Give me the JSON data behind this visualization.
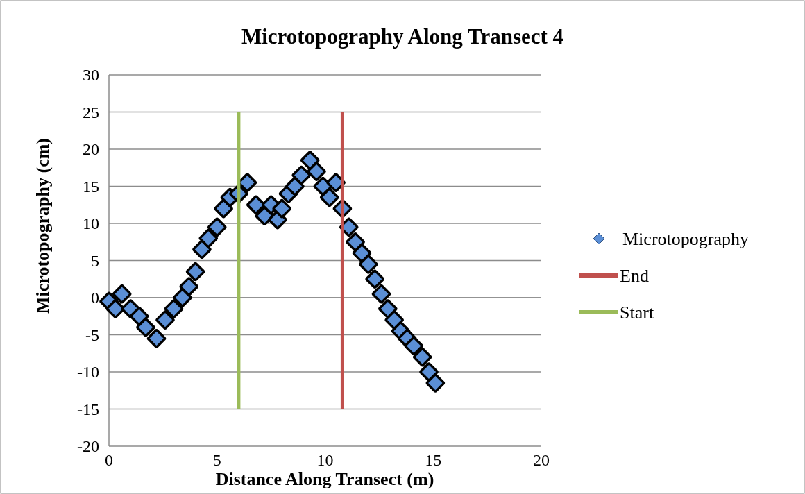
{
  "chart_data": {
    "type": "scatter",
    "title": "Microtopography Along Transect 4",
    "xlabel": "Distance Along Transect (m)",
    "ylabel": "Microtopography (cm)",
    "xlim": [
      0,
      20
    ],
    "xticks": [
      0,
      5,
      10,
      15,
      20
    ],
    "ylim": [
      -20,
      30
    ],
    "yticks": [
      -20,
      -15,
      -10,
      -5,
      0,
      5,
      10,
      15,
      20,
      25,
      30
    ],
    "grid": "y",
    "legend": "right",
    "series": [
      {
        "name": "Microtopography",
        "color": "#5b8fd6",
        "marker": "diamond",
        "x": [
          0,
          0.3,
          0.6,
          1.0,
          1.4,
          1.7,
          2.2,
          2.6,
          3.0,
          3.4,
          3.7,
          4.0,
          4.3,
          4.6,
          5.0,
          5.3,
          5.6,
          6.0,
          6.4,
          6.8,
          7.2,
          7.5,
          7.8,
          8.0,
          8.3,
          8.6,
          8.9,
          9.3,
          9.6,
          9.9,
          10.2,
          10.5,
          10.8,
          11.1,
          11.4,
          11.7,
          12.0,
          12.3,
          12.6,
          12.9,
          13.2,
          13.5,
          13.8,
          14.1,
          14.5,
          14.8,
          15.1
        ],
        "values": [
          -0.5,
          -1.5,
          0.5,
          -1.5,
          -2.5,
          -4,
          -5.5,
          -3,
          -1.5,
          0,
          1.5,
          3.5,
          6.5,
          8,
          9.5,
          12,
          13.5,
          14,
          15.5,
          12.5,
          11,
          12.5,
          10.5,
          12,
          14,
          15,
          16.5,
          18.5,
          17,
          15,
          13.5,
          15.5,
          12,
          9.5,
          7.5,
          6,
          4.5,
          2.5,
          0.5,
          -1.5,
          -3,
          -4.5,
          -5.5,
          -6.5,
          -8,
          -10,
          -11.5
        ]
      },
      {
        "name": "End",
        "type": "line",
        "color": "#c0504d",
        "marker": "none",
        "x": [
          10.8,
          10.8
        ],
        "values": [
          -15,
          25
        ]
      },
      {
        "name": "Start",
        "type": "line",
        "color": "#9bbb59",
        "marker": "none",
        "x": [
          6,
          6
        ],
        "values": [
          -15,
          25
        ]
      }
    ]
  }
}
